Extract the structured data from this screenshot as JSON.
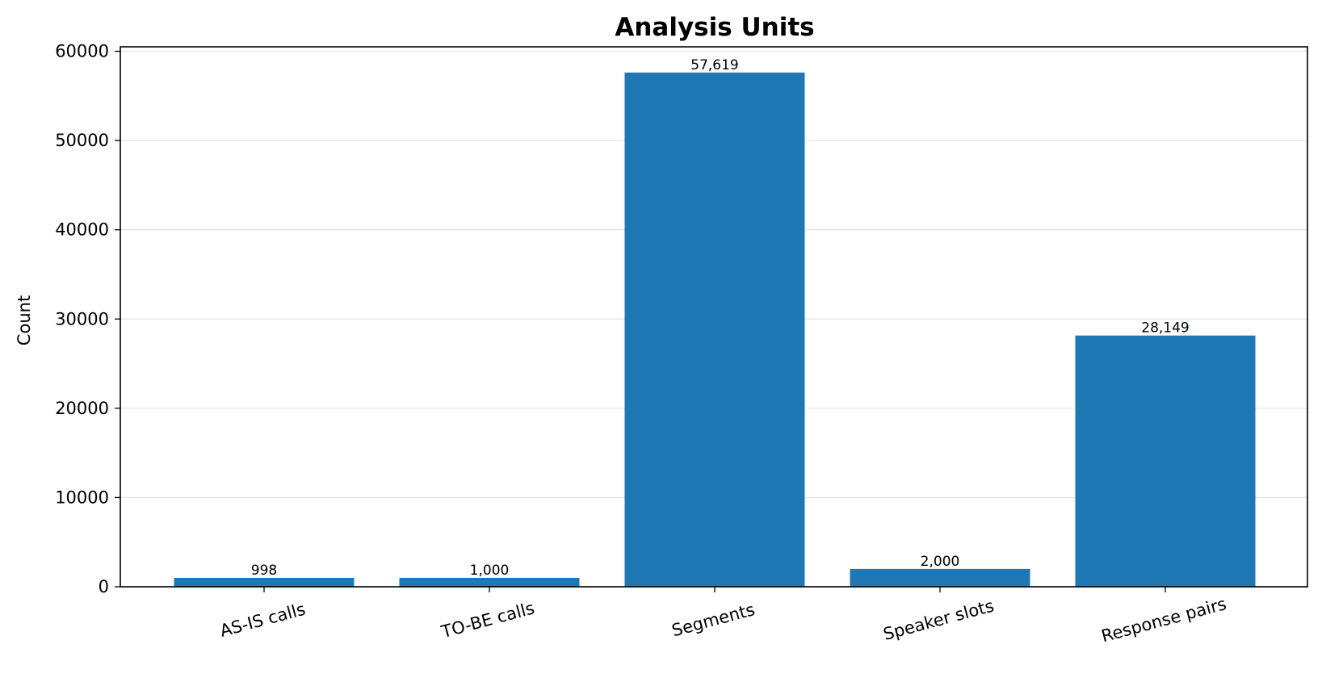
{
  "chart_data": {
    "type": "bar",
    "title": "Analysis Units",
    "xlabel": "",
    "ylabel": "Count",
    "categories": [
      "AS-IS calls",
      "TO-BE calls",
      "Segments",
      "Speaker slots",
      "Response pairs"
    ],
    "values": [
      998,
      1000,
      57619,
      2000,
      28149
    ],
    "data_labels": [
      "998",
      "1,000",
      "57,619",
      "2,000",
      "28,149"
    ],
    "y_ticks": [
      0,
      10000,
      20000,
      30000,
      40000,
      50000,
      60000
    ],
    "y_tick_labels": [
      "0",
      "10000",
      "20000",
      "30000",
      "40000",
      "50000",
      "60000"
    ],
    "ylim": [
      0,
      60500
    ],
    "grid": "horizontal",
    "legend": "none",
    "bar_color": "#1f77b4",
    "grid_color": "#e5e5e5",
    "x_tick_rotation_deg": -15
  }
}
